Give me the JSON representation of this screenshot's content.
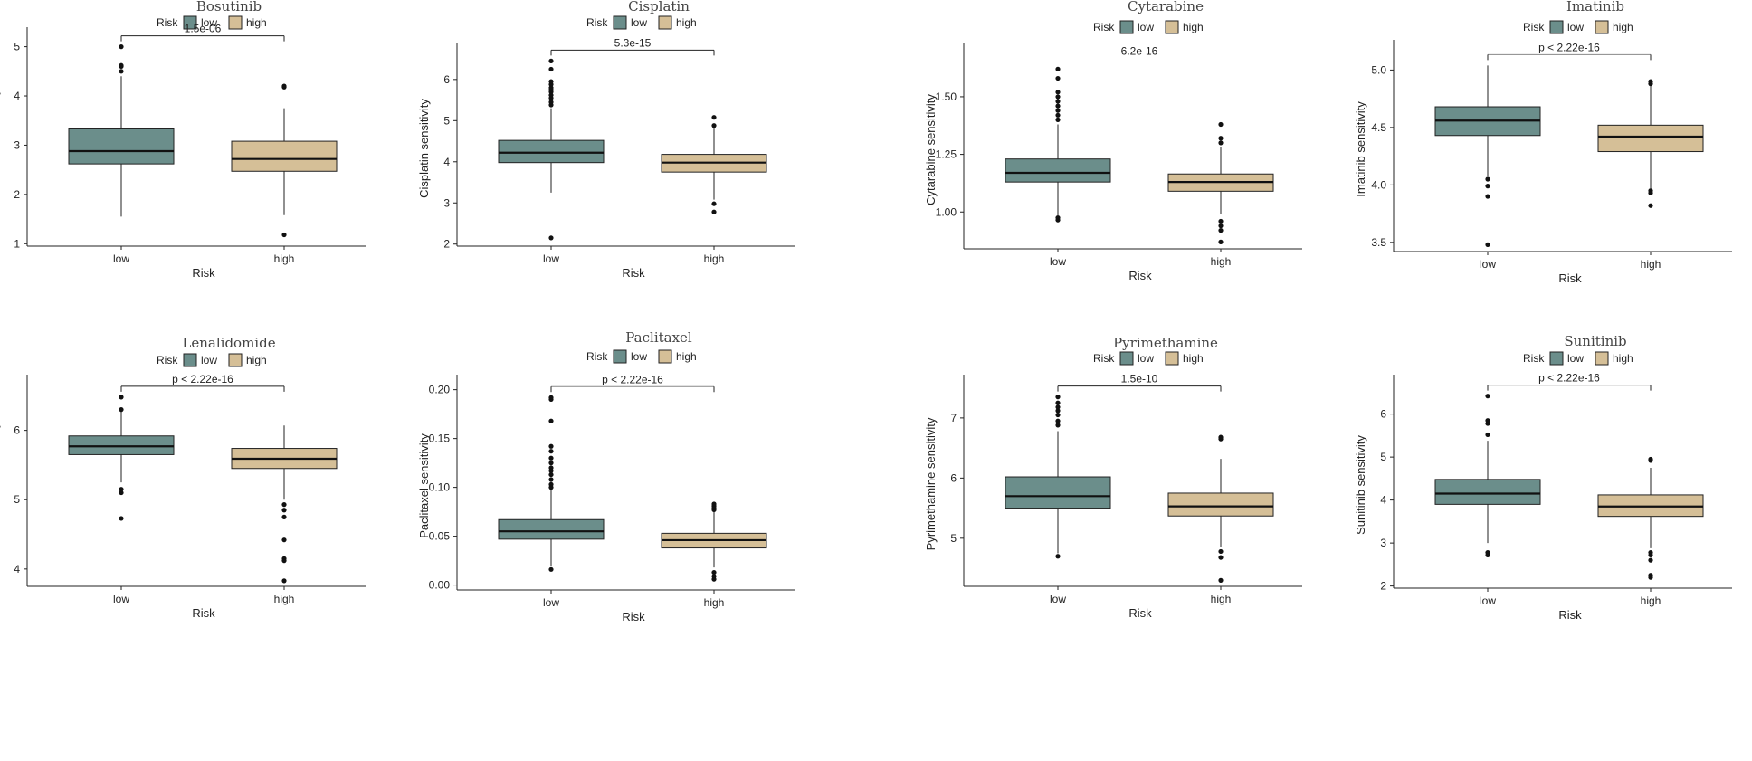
{
  "colors": {
    "low": "#6b8e8b",
    "high": "#d5bf97"
  },
  "legend": {
    "title": "Risk",
    "labels": [
      "low",
      "high"
    ]
  },
  "chart_data": [
    {
      "type": "boxplot",
      "title": "Bosutinib",
      "ylabel": "Bosutinib sensitivity",
      "xlabel": "Risk",
      "categories": [
        "low",
        "high"
      ],
      "yticks": [
        1,
        2,
        3,
        4,
        5
      ],
      "ylim": [
        0.95,
        5.25
      ],
      "pvalue": "1.5e-06",
      "boxes": [
        {
          "q1": 2.62,
          "median": 2.88,
          "q3": 3.33,
          "wlo": 1.55,
          "whi": 4.4,
          "outliers": [
            4.5,
            4.6,
            4.62,
            5.0
          ]
        },
        {
          "q1": 2.47,
          "median": 2.72,
          "q3": 3.08,
          "wlo": 1.58,
          "whi": 3.75,
          "outliers": [
            4.18,
            4.2,
            1.18
          ]
        }
      ]
    },
    {
      "type": "boxplot",
      "title": "Cisplatin",
      "ylabel": "Cisplatin sensitivity",
      "xlabel": "Risk",
      "categories": [
        "low",
        "high"
      ],
      "yticks": [
        2,
        3,
        4,
        5,
        6
      ],
      "ylim": [
        1.95,
        6.7
      ],
      "pvalue": "5.3e-15",
      "boxes": [
        {
          "q1": 3.98,
          "median": 4.22,
          "q3": 4.52,
          "wlo": 3.25,
          "whi": 5.3,
          "outliers": [
            5.38,
            5.45,
            5.55,
            5.62,
            5.7,
            5.75,
            5.8,
            5.88,
            5.95,
            6.25,
            6.45,
            2.15
          ]
        },
        {
          "q1": 3.75,
          "median": 3.98,
          "q3": 4.18,
          "wlo": 3.08,
          "whi": 4.82,
          "outliers": [
            4.88,
            5.08,
            2.98,
            2.78
          ]
        }
      ]
    },
    {
      "type": "boxplot",
      "title": "Cytarabine",
      "ylabel": "Cytarabine sensitivity",
      "xlabel": "Risk",
      "categories": [
        "low",
        "high"
      ],
      "yticks": [
        1.0,
        1.25,
        1.5
      ],
      "ylim": [
        0.84,
        1.7
      ],
      "pvalue": "6.2e-16",
      "boxes": [
        {
          "q1": 1.13,
          "median": 1.17,
          "q3": 1.23,
          "wlo": 0.985,
          "whi": 1.38,
          "outliers": [
            1.4,
            1.42,
            1.44,
            1.46,
            1.48,
            1.5,
            1.52,
            1.58,
            1.62,
            0.965,
            0.975
          ]
        },
        {
          "q1": 1.09,
          "median": 1.13,
          "q3": 1.165,
          "wlo": 0.99,
          "whi": 1.28,
          "outliers": [
            1.3,
            1.32,
            1.38,
            0.96,
            0.94,
            0.92,
            0.87
          ]
        }
      ]
    },
    {
      "type": "boxplot",
      "title": "Imatinib",
      "ylabel": "Imatinib sensitivity",
      "xlabel": "Risk",
      "categories": [
        "low",
        "high"
      ],
      "yticks": [
        3.5,
        4.0,
        4.5,
        5.0
      ],
      "ylim": [
        3.42,
        5.2
      ],
      "pvalue": "p < 2.22e-16",
      "boxes": [
        {
          "q1": 4.43,
          "median": 4.56,
          "q3": 4.68,
          "wlo": 4.08,
          "whi": 5.04,
          "outliers": [
            4.05,
            3.99,
            3.9,
            3.48
          ]
        },
        {
          "q1": 4.29,
          "median": 4.42,
          "q3": 4.52,
          "wlo": 3.97,
          "whi": 4.86,
          "outliers": [
            4.88,
            4.9,
            3.95,
            3.93,
            3.82
          ]
        }
      ]
    },
    {
      "type": "boxplot",
      "title": "Lenalidomide",
      "ylabel": "Lenalidomide sensitivity",
      "xlabel": "Risk",
      "categories": [
        "low",
        "high"
      ],
      "yticks": [
        4,
        5,
        6
      ],
      "ylim": [
        3.75,
        6.7
      ],
      "pvalue": "p < 2.22e-16",
      "boxes": [
        {
          "q1": 5.65,
          "median": 5.77,
          "q3": 5.92,
          "wlo": 5.25,
          "whi": 6.28,
          "outliers": [
            6.3,
            6.48,
            5.15,
            5.1,
            4.73
          ]
        },
        {
          "q1": 5.45,
          "median": 5.59,
          "q3": 5.74,
          "wlo": 5.0,
          "whi": 6.07,
          "outliers": [
            4.93,
            4.85,
            4.75,
            4.42,
            4.15,
            4.12,
            3.83
          ]
        }
      ]
    },
    {
      "type": "boxplot",
      "title": "Paclitaxel",
      "ylabel": "Paclitaxel sensitivity",
      "xlabel": "Risk",
      "categories": [
        "low",
        "high"
      ],
      "yticks": [
        0.0,
        0.05,
        0.1,
        0.15,
        0.2
      ],
      "ylim": [
        -0.005,
        0.208
      ],
      "pvalue": "p < 2.22e-16",
      "boxes": [
        {
          "q1": 0.047,
          "median": 0.055,
          "q3": 0.067,
          "wlo": 0.02,
          "whi": 0.098,
          "outliers": [
            0.1,
            0.103,
            0.108,
            0.113,
            0.117,
            0.12,
            0.125,
            0.13,
            0.137,
            0.142,
            0.168,
            0.19,
            0.192,
            0.016
          ]
        },
        {
          "q1": 0.038,
          "median": 0.046,
          "q3": 0.053,
          "wlo": 0.018,
          "whi": 0.075,
          "outliers": [
            0.077,
            0.079,
            0.081,
            0.083,
            0.013,
            0.009,
            0.006
          ]
        }
      ]
    },
    {
      "type": "boxplot",
      "title": "Pyrimethamine",
      "ylabel": "Pyrimethamine sensitivity",
      "xlabel": "Risk",
      "categories": [
        "low",
        "high"
      ],
      "yticks": [
        5,
        6,
        7
      ],
      "ylim": [
        4.2,
        7.6
      ],
      "pvalue": "1.5e-10",
      "boxes": [
        {
          "q1": 5.5,
          "median": 5.7,
          "q3": 6.02,
          "wlo": 4.75,
          "whi": 6.78,
          "outliers": [
            6.88,
            6.95,
            7.05,
            7.12,
            7.18,
            7.25,
            7.35,
            4.7
          ]
        },
        {
          "q1": 5.37,
          "median": 5.53,
          "q3": 5.75,
          "wlo": 4.85,
          "whi": 6.32,
          "outliers": [
            6.65,
            6.68,
            4.78,
            4.68,
            4.3
          ]
        }
      ]
    },
    {
      "type": "boxplot",
      "title": "Sunitinib",
      "ylabel": "Sunitinib sensitivity",
      "xlabel": "Risk",
      "categories": [
        "low",
        "high"
      ],
      "yticks": [
        2,
        3,
        4,
        5,
        6
      ],
      "ylim": [
        1.95,
        6.75
      ],
      "pvalue": "p < 2.22e-16",
      "boxes": [
        {
          "q1": 3.9,
          "median": 4.15,
          "q3": 4.48,
          "wlo": 3.0,
          "whi": 5.38,
          "outliers": [
            5.52,
            5.78,
            5.85,
            6.42,
            2.78,
            2.72
          ]
        },
        {
          "q1": 3.62,
          "median": 3.85,
          "q3": 4.12,
          "wlo": 2.88,
          "whi": 4.75,
          "outliers": [
            4.92,
            4.95,
            2.78,
            2.72,
            2.6,
            2.25,
            2.2
          ]
        }
      ]
    }
  ]
}
